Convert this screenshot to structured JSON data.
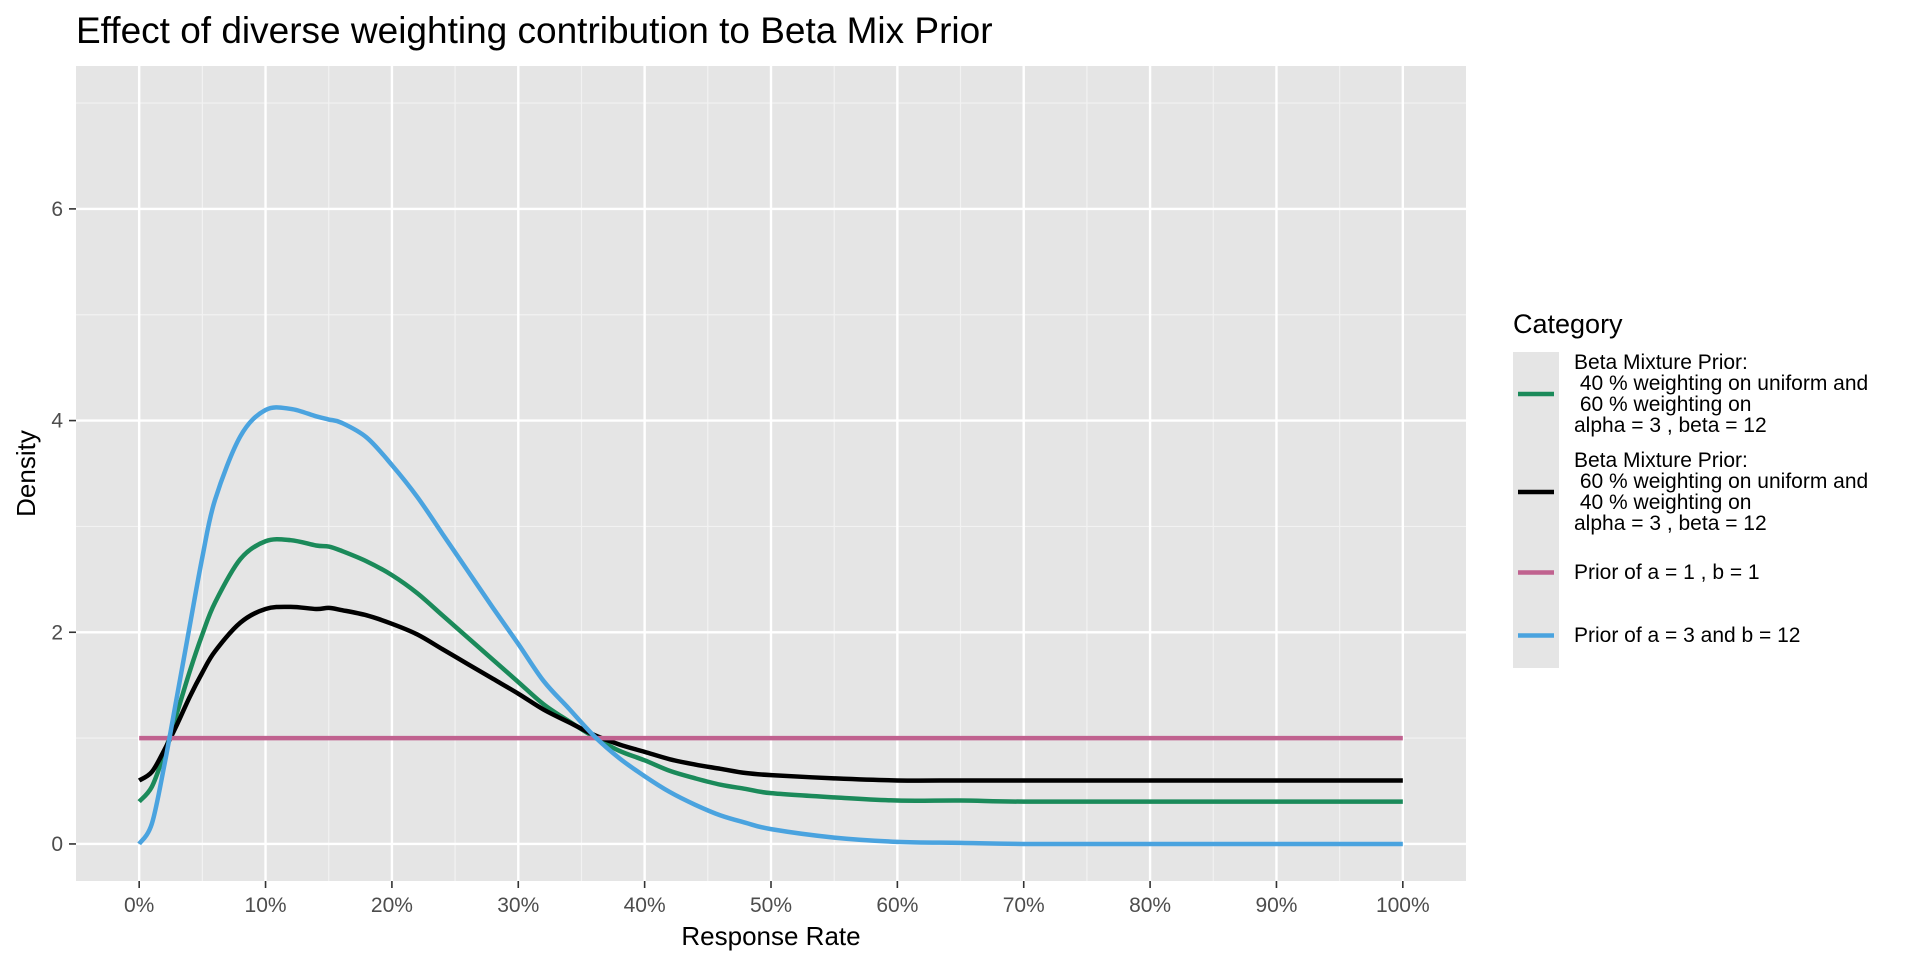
{
  "chart_data": {
    "type": "line",
    "title": "Effect of diverse weighting contribution to Beta Mix Prior",
    "xlabel": "Response Rate",
    "ylabel": "Density",
    "xlim": [
      -0.05,
      1.05
    ],
    "ylim": [
      -0.35,
      7.35
    ],
    "x_ticks": [
      0,
      0.1,
      0.2,
      0.3,
      0.4,
      0.5,
      0.6,
      0.7,
      0.8,
      0.9,
      1.0
    ],
    "x_tick_labels": [
      "0%",
      "10%",
      "20%",
      "30%",
      "40%",
      "50%",
      "60%",
      "70%",
      "80%",
      "90%",
      "100%"
    ],
    "y_ticks": [
      0,
      2,
      4,
      6
    ],
    "y_tick_labels": [
      "0",
      "2",
      "4",
      "6"
    ],
    "grid": true,
    "legend_title": "Category",
    "legend_position": "right",
    "x": [
      0,
      0.01,
      0.02,
      0.03,
      0.04,
      0.05,
      0.06,
      0.08,
      0.1,
      0.12,
      0.14,
      0.15,
      0.16,
      0.18,
      0.2,
      0.22,
      0.24,
      0.26,
      0.28,
      0.3,
      0.32,
      0.34,
      0.36,
      0.38,
      0.4,
      0.42,
      0.44,
      0.46,
      0.48,
      0.5,
      0.55,
      0.6,
      0.65,
      0.7,
      0.8,
      0.9,
      1.0
    ],
    "series": [
      {
        "name": "Beta Mixture Prior:\n 40 % weighting on uniform and\n 60 % weighting on\nalpha = 3 , beta = 12",
        "legend_lines": [
          "Beta Mixture Prior:",
          " 40 % weighting on uniform and",
          " 60 % weighting on",
          "alpha = 3 , beta = 12"
        ],
        "color": "#1b8a5a",
        "values": [
          0.4,
          0.54,
          0.86,
          1.24,
          1.63,
          1.98,
          2.28,
          2.69,
          2.86,
          2.87,
          2.82,
          2.81,
          2.77,
          2.67,
          2.54,
          2.37,
          2.16,
          1.95,
          1.74,
          1.53,
          1.32,
          1.16,
          1.01,
          0.88,
          0.79,
          0.69,
          0.62,
          0.56,
          0.52,
          0.48,
          0.44,
          0.41,
          0.41,
          0.4,
          0.4,
          0.4,
          0.4
        ]
      },
      {
        "name": "Beta Mixture Prior:\n 60 % weighting on uniform and\n 40 % weighting on\nalpha = 3 , beta = 12",
        "legend_lines": [
          "Beta Mixture Prior:",
          " 60 % weighting on uniform and",
          " 40 % weighting on",
          "alpha = 3 , beta = 12"
        ],
        "color": "#000000",
        "values": [
          0.6,
          0.68,
          0.89,
          1.13,
          1.39,
          1.62,
          1.82,
          2.09,
          2.22,
          2.24,
          2.22,
          2.23,
          2.21,
          2.16,
          2.08,
          1.98,
          1.84,
          1.7,
          1.56,
          1.42,
          1.27,
          1.15,
          1.03,
          0.94,
          0.87,
          0.8,
          0.75,
          0.71,
          0.67,
          0.65,
          0.62,
          0.6,
          0.6,
          0.6,
          0.6,
          0.6,
          0.6
        ]
      },
      {
        "name": "Prior of a = 1 , b = 1",
        "legend_lines": [
          "Prior of a = 1 , b = 1"
        ],
        "color": "#c0628f",
        "values": [
          1,
          1,
          1,
          1,
          1,
          1,
          1,
          1,
          1,
          1,
          1,
          1,
          1,
          1,
          1,
          1,
          1,
          1,
          1,
          1,
          1,
          1,
          1,
          1,
          1,
          1,
          1,
          1,
          1,
          1,
          1,
          1,
          1,
          1,
          1,
          1,
          1
        ]
      },
      {
        "name": "Prior of a = 3 and b = 12",
        "legend_lines": [
          "Prior of a = 3 and b = 12"
        ],
        "color": "#4aa3df",
        "values": [
          0,
          0.19,
          0.75,
          1.4,
          2.06,
          2.71,
          3.25,
          3.85,
          4.1,
          4.11,
          4.04,
          4.01,
          3.98,
          3.84,
          3.58,
          3.28,
          2.93,
          2.58,
          2.23,
          1.89,
          1.54,
          1.28,
          1.02,
          0.81,
          0.64,
          0.49,
          0.37,
          0.27,
          0.2,
          0.14,
          0.06,
          0.02,
          0.01,
          0.0,
          0.0,
          0.0,
          0.0
        ]
      }
    ]
  }
}
